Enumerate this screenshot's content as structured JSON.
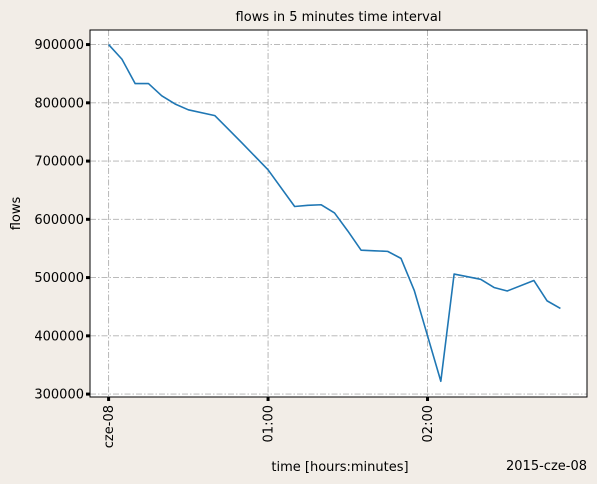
{
  "chart_data": {
    "type": "line",
    "title": "flows in 5 minutes time interval",
    "xlabel": "time [hours:minutes]",
    "ylabel": "flows",
    "x_offset_label": "2015-cze-08",
    "x_unit": "minutes",
    "xlim": [
      -7,
      180
    ],
    "ylim": [
      295000,
      925000
    ],
    "x_ticks": [
      {
        "value": 0,
        "label": "cze-08"
      },
      {
        "value": 60,
        "label": "01:00"
      },
      {
        "value": 120,
        "label": "02:00"
      }
    ],
    "y_ticks": [
      {
        "value": 300000,
        "label": "300000"
      },
      {
        "value": 400000,
        "label": "400000"
      },
      {
        "value": 500000,
        "label": "500000"
      },
      {
        "value": 600000,
        "label": "600000"
      },
      {
        "value": 700000,
        "label": "700000"
      },
      {
        "value": 800000,
        "label": "800000"
      },
      {
        "value": 900000,
        "label": "900000"
      }
    ],
    "grid": true,
    "line_color": "#1f77b4",
    "series": [
      {
        "x": [
          0,
          5,
          10,
          15,
          20,
          25,
          30,
          40,
          50,
          60,
          70,
          75,
          80,
          85,
          90,
          95,
          100,
          105,
          110,
          115,
          120,
          125,
          130,
          140,
          145,
          150,
          160,
          165,
          170
        ],
        "values": [
          900000,
          875000,
          833000,
          833000,
          812000,
          798000,
          788000,
          778000,
          732000,
          685000,
          622000,
          624000,
          625000,
          611000,
          580000,
          547000,
          546000,
          545000,
          533000,
          478000,
          400000,
          322000,
          506000,
          497000,
          483000,
          477000,
          495000,
          460000,
          447000
        ]
      }
    ]
  }
}
